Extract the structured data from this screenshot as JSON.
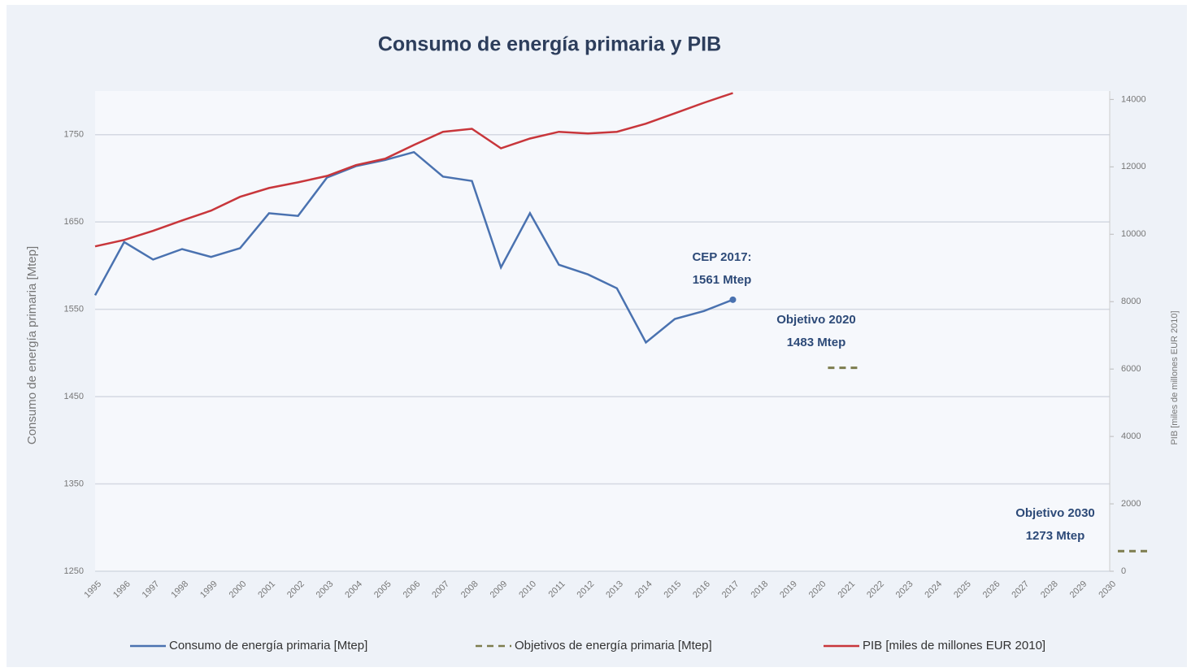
{
  "chart_data": {
    "type": "line",
    "title": "Consumo de energía primaria y PIB",
    "y_label": "Consumo de energía primaria [Mtep]",
    "y2_label": "PIB [miles de millones EUR 2010]",
    "categories": [
      "1995",
      "1996",
      "1997",
      "1998",
      "1999",
      "2000",
      "2001",
      "2002",
      "2003",
      "2004",
      "2005",
      "2006",
      "2007",
      "2008",
      "2009",
      "2010",
      "2011",
      "2012",
      "2013",
      "2014",
      "2015",
      "2016",
      "2017",
      "2018",
      "2019",
      "2020",
      "2021",
      "2022",
      "2023",
      "2024",
      "2025",
      "2026",
      "2027",
      "2028",
      "2029",
      "2030"
    ],
    "series": [
      {
        "name": "Consumo de energía primaria [Mtep]",
        "color": "#4a72b0",
        "axis": "y",
        "values": [
          1566,
          1627,
          1607,
          1619,
          1610,
          1620,
          1660,
          1657,
          1701,
          1714,
          1721,
          1730,
          1702,
          1697,
          1598,
          1660,
          1601,
          1590,
          1574,
          1512,
          1539,
          1548,
          1561,
          null,
          null,
          null,
          null,
          null,
          null,
          null,
          null,
          null,
          null,
          null,
          null,
          null
        ]
      },
      {
        "name": "Objetivos de energía primaria [Mtep]",
        "color": "#7d7d4e",
        "axis": "y",
        "dashed": true,
        "values": [
          null,
          null,
          null,
          null,
          null,
          null,
          null,
          null,
          null,
          null,
          null,
          null,
          null,
          null,
          null,
          null,
          null,
          null,
          null,
          null,
          null,
          null,
          null,
          null,
          null,
          1483,
          null,
          null,
          null,
          null,
          null,
          null,
          null,
          null,
          null,
          1273
        ]
      },
      {
        "name": "PIB [miles de millones EUR 2010]",
        "color": "#c8363b",
        "axis": "y2",
        "values": [
          9640,
          9830,
          10100,
          10410,
          10700,
          11110,
          11370,
          11540,
          11730,
          12050,
          12240,
          12650,
          13040,
          13130,
          12550,
          12840,
          13040,
          12990,
          13040,
          13280,
          13590,
          13900,
          14190,
          null,
          null,
          null,
          null,
          null,
          null,
          null,
          null,
          null,
          null,
          null,
          null,
          null
        ]
      }
    ],
    "ylim": [
      1250,
      1800
    ],
    "yticks": [
      1250,
      1350,
      1450,
      1550,
      1650,
      1750
    ],
    "y2lim": [
      0,
      14250
    ],
    "y2ticks": [
      0,
      2000,
      4000,
      6000,
      8000,
      10000,
      12000,
      14000
    ],
    "grid": true,
    "annotations": [
      {
        "lines": [
          "CEP 2017:",
          "1561 Mtep"
        ]
      },
      {
        "lines": [
          "Objetivo 2020",
          "1483 Mtep"
        ]
      },
      {
        "lines": [
          "Objetivo 2030",
          "1273 Mtep"
        ]
      }
    ]
  }
}
